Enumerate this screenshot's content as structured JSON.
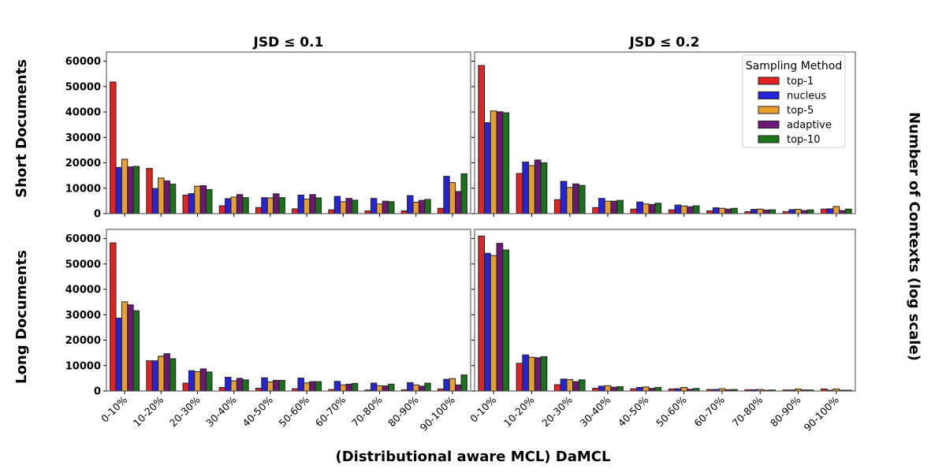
{
  "figure": {
    "col_titles": [
      "JSD ≤ 0.1",
      "JSD ≤ 0.2"
    ],
    "row_labels": [
      "Short Documents",
      "Long Documents"
    ],
    "xlabel": "(Distributional aware MCL) DaMCL",
    "ylabel": "Number of Contexts (log scale)",
    "legend_title": "Sampling Method",
    "legend_placement": "top-right",
    "y_ticks": [
      0,
      10000,
      20000,
      30000,
      40000,
      50000,
      60000
    ],
    "y_tick_labels": [
      "0",
      "10000",
      "20000",
      "30000",
      "40000",
      "50000",
      "60000"
    ]
  },
  "series_names": [
    "top-1",
    "nucleus",
    "top-5",
    "adaptive",
    "top-10"
  ],
  "colors": {
    "top-1": "#e02424",
    "nucleus": "#2424dc",
    "top-5": "#e8a02c",
    "adaptive": "#6c1676",
    "top-10": "#1a721a"
  },
  "categories": [
    "0-10%",
    "10-20%",
    "20-30%",
    "30-40%",
    "40-50%",
    "50-60%",
    "60-70%",
    "70-80%",
    "80-90%",
    "90-100%"
  ],
  "chart_data": [
    {
      "type": "bar",
      "row": "Short Documents",
      "column": "JSD ≤ 0.1",
      "ylim": [
        0,
        63600
      ],
      "grid": false,
      "series": [
        {
          "name": "top-1",
          "values": [
            51800,
            17800,
            7300,
            3100,
            2400,
            1900,
            1500,
            1100,
            1100,
            2100
          ]
        },
        {
          "name": "nucleus",
          "values": [
            18200,
            9900,
            7900,
            5900,
            6300,
            7300,
            6800,
            6000,
            7100,
            14700
          ]
        },
        {
          "name": "top-5",
          "values": [
            21400,
            14000,
            10800,
            6500,
            6200,
            5700,
            4700,
            3800,
            4500,
            12200
          ]
        },
        {
          "name": "adaptive",
          "values": [
            18400,
            12900,
            11000,
            7500,
            7800,
            7500,
            6000,
            4900,
            5200,
            8700
          ]
        },
        {
          "name": "top-10",
          "values": [
            18600,
            11600,
            9500,
            6300,
            6300,
            6200,
            5300,
            4700,
            5600,
            15700
          ]
        }
      ]
    },
    {
      "type": "bar",
      "row": "Short Documents",
      "column": "JSD ≤ 0.2",
      "ylim": [
        0,
        63600
      ],
      "grid": false,
      "series": [
        {
          "name": "top-1",
          "values": [
            58300,
            15800,
            5500,
            2400,
            1800,
            1500,
            1100,
            800,
            800,
            1800
          ]
        },
        {
          "name": "nucleus",
          "values": [
            35800,
            20300,
            12700,
            6000,
            4600,
            3400,
            2300,
            1700,
            1600,
            1900
          ]
        },
        {
          "name": "top-5",
          "values": [
            40400,
            18900,
            10300,
            4900,
            3800,
            3000,
            2100,
            1800,
            1700,
            2800
          ]
        },
        {
          "name": "adaptive",
          "values": [
            40100,
            21100,
            11700,
            4900,
            3600,
            2700,
            1800,
            1400,
            1200,
            1200
          ]
        },
        {
          "name": "top-10",
          "values": [
            39700,
            20000,
            11100,
            5200,
            4100,
            3100,
            2100,
            1500,
            1500,
            1800
          ]
        }
      ]
    },
    {
      "type": "bar",
      "row": "Long Documents",
      "column": "JSD ≤ 0.1",
      "ylim": [
        0,
        63600
      ],
      "grid": false,
      "series": [
        {
          "name": "top-1",
          "values": [
            58300,
            11900,
            3100,
            1400,
            1100,
            900,
            600,
            400,
            500,
            800
          ]
        },
        {
          "name": "nucleus",
          "values": [
            28700,
            11900,
            8000,
            5400,
            5200,
            5100,
            3800,
            3100,
            3300,
            4600
          ]
        },
        {
          "name": "top-5",
          "values": [
            35100,
            13700,
            7600,
            4000,
            3600,
            3200,
            2400,
            2100,
            2400,
            4900
          ]
        },
        {
          "name": "adaptive",
          "values": [
            33900,
            14700,
            8700,
            5000,
            4200,
            3700,
            2700,
            2000,
            1900,
            2400
          ]
        },
        {
          "name": "top-10",
          "values": [
            31600,
            12700,
            7500,
            4400,
            4200,
            3700,
            3000,
            2700,
            3100,
            6300
          ]
        }
      ]
    },
    {
      "type": "bar",
      "row": "Long Documents",
      "column": "JSD ≤ 0.2",
      "ylim": [
        0,
        63600
      ],
      "grid": false,
      "series": [
        {
          "name": "top-1",
          "values": [
            61000,
            10900,
            2500,
            1100,
            900,
            800,
            600,
            500,
            400,
            800
          ]
        },
        {
          "name": "nucleus",
          "values": [
            54200,
            14200,
            4700,
            1900,
            1400,
            900,
            600,
            500,
            400,
            300
          ]
        },
        {
          "name": "top-5",
          "values": [
            53300,
            13300,
            4500,
            2100,
            1600,
            1400,
            900,
            600,
            800,
            800
          ]
        },
        {
          "name": "adaptive",
          "values": [
            58100,
            13100,
            3700,
            1500,
            1000,
            700,
            500,
            300,
            400,
            300
          ]
        },
        {
          "name": "top-10",
          "values": [
            55500,
            13500,
            4400,
            1700,
            1400,
            1000,
            600,
            400,
            400,
            300
          ]
        }
      ]
    }
  ]
}
